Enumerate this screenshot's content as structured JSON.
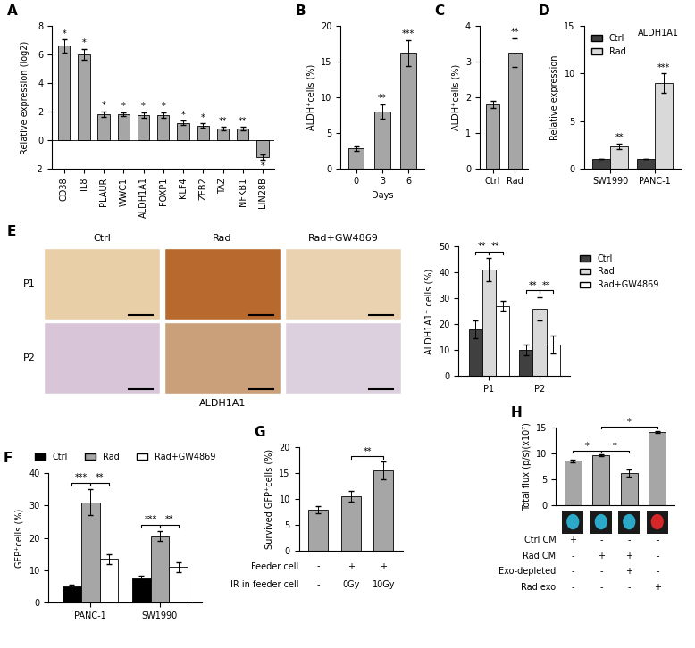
{
  "chart_data": [
    {
      "type": "bar",
      "title": "A",
      "y_label": "Relative expression (log2)",
      "categories": [
        "CD38",
        "IL8",
        "PLAUR",
        "WWC1",
        "ALDH1A1",
        "FOXP1",
        "KLF4",
        "ZEB2",
        "TAZ",
        "NFKB1",
        "LIN28B"
      ],
      "values": [
        6.6,
        6.0,
        1.8,
        1.8,
        1.75,
        1.75,
        1.2,
        1.0,
        0.8,
        0.8,
        -1.2
      ],
      "errors": [
        0.45,
        0.4,
        0.2,
        0.15,
        0.2,
        0.2,
        0.15,
        0.15,
        0.1,
        0.1,
        0.2
      ],
      "annotations": [
        "*",
        "*",
        "*",
        "*",
        "*",
        "*",
        "*",
        "*",
        "**",
        "**",
        "*"
      ],
      "color": "#a6a6a6",
      "ylim": [
        -2,
        8
      ],
      "yticks": [
        -2,
        0,
        2,
        4,
        6,
        8
      ]
    },
    {
      "type": "bar",
      "title": "B",
      "y_label": "ALDH⁺cells (%)",
      "x_label": "Days",
      "categories": [
        "0",
        "3",
        "6"
      ],
      "values": [
        2.8,
        8.0,
        16.2
      ],
      "errors": [
        0.3,
        1.0,
        1.8
      ],
      "annotations": [
        null,
        "**",
        "***"
      ],
      "color": "#a6a6a6",
      "ylim": [
        0,
        20
      ],
      "yticks": [
        0,
        5,
        10,
        15,
        20
      ]
    },
    {
      "type": "bar",
      "title": "C",
      "y_label": "ALDH⁺cells (%)",
      "categories": [
        "Ctrl",
        "Rad"
      ],
      "values": [
        1.8,
        3.25
      ],
      "errors": [
        0.1,
        0.4
      ],
      "annotations": [
        null,
        "**"
      ],
      "color": "#a6a6a6",
      "ylim": [
        0,
        4
      ],
      "yticks": [
        0,
        1,
        2,
        3,
        4
      ]
    },
    {
      "type": "grouped_bar",
      "title": "D",
      "subtitle": "ALDH1A1",
      "y_label": "Relative expression",
      "categories": [
        "SW1990",
        "PANC-1"
      ],
      "series": [
        {
          "name": "Ctrl",
          "color": "#404040",
          "values": [
            1,
            1
          ],
          "errors": [
            0,
            0
          ],
          "annotations": [
            null,
            null
          ]
        },
        {
          "name": "Rad",
          "color": "#d9d9d9",
          "values": [
            2.3,
            9.0
          ],
          "errors": [
            0.3,
            1.0
          ],
          "annotations": [
            "**",
            "***"
          ]
        }
      ],
      "legend": "upper left",
      "ylim": [
        0,
        15
      ],
      "yticks": [
        0,
        5,
        10,
        15
      ]
    },
    {
      "type": "image_grid",
      "title": "E",
      "rows": [
        "P1",
        "P2"
      ],
      "columns": [
        "Ctrl",
        "Rad",
        "Rad+GW4869"
      ],
      "caption": "ALDH1A1"
    },
    {
      "type": "grouped_bar",
      "y_label": "ALDH1A1⁺ cells (%)",
      "categories": [
        "P1",
        "P2"
      ],
      "series": [
        {
          "name": "Ctrl",
          "color": "#404040",
          "values": [
            18,
            10
          ],
          "errors": [
            3.5,
            2
          ]
        },
        {
          "name": "Rad",
          "color": "#d9d9d9",
          "values": [
            41,
            26
          ],
          "errors": [
            4.5,
            4.5
          ]
        },
        {
          "name": "Rad+GW4869",
          "color": "#ffffff",
          "values": [
            27,
            12
          ],
          "errors": [
            2,
            3.5
          ]
        }
      ],
      "comparisons": [
        {
          "category": "P1",
          "from": "Ctrl",
          "to": "Rad",
          "text": "**"
        },
        {
          "category": "P1",
          "from": "Rad",
          "to": "Rad+GW4869",
          "text": "**"
        },
        {
          "category": "P2",
          "from": "Ctrl",
          "to": "Rad",
          "text": "**"
        },
        {
          "category": "P2",
          "from": "Rad",
          "to": "Rad+GW4869",
          "text": "**"
        }
      ],
      "legend": "upper left",
      "ylim": [
        0,
        50
      ],
      "yticks": [
        0,
        10,
        20,
        30,
        40,
        50
      ]
    },
    {
      "type": "grouped_bar",
      "title": "F",
      "y_label": "GFP⁺cells (%)",
      "categories": [
        "PANC-1",
        "SW1990"
      ],
      "series": [
        {
          "name": "Ctrl",
          "color": "#000000",
          "values": [
            5,
            7.5
          ],
          "errors": [
            0.5,
            0.8
          ]
        },
        {
          "name": "Rad",
          "color": "#a6a6a6",
          "values": [
            31,
            20.5
          ],
          "errors": [
            4,
            1.5
          ]
        },
        {
          "name": "Rad+GW4869",
          "color": "#ffffff",
          "values": [
            13.5,
            11
          ],
          "errors": [
            1.5,
            1.5
          ]
        }
      ],
      "comparisons": [
        {
          "category": "PANC-1",
          "from": "Ctrl",
          "to": "Rad",
          "text": "***"
        },
        {
          "category": "PANC-1",
          "from": "Rad",
          "to": "Rad+GW4869",
          "text": "**"
        },
        {
          "category": "SW1990",
          "from": "Ctrl",
          "to": "Rad",
          "text": "***"
        },
        {
          "category": "SW1990",
          "from": "Rad",
          "to": "Rad+GW4869",
          "text": "**"
        }
      ],
      "legend": "upper center",
      "ylim": [
        0,
        40
      ],
      "yticks": [
        0,
        10,
        20,
        30,
        40
      ]
    },
    {
      "type": "bar",
      "title": "G",
      "y_label": "Survived GFP⁺cells (%)",
      "categories": [
        null,
        null,
        null
      ],
      "values": [
        8,
        10.5,
        15.5
      ],
      "errors": [
        0.7,
        1.0,
        1.7
      ],
      "comparisons": [
        {
          "from": 1,
          "to": 2,
          "text": "**"
        }
      ],
      "conditions": [
        {
          "label": "Feeder cell",
          "values": [
            "-",
            "+",
            "+"
          ]
        },
        {
          "label": "IR in feeder cell",
          "values": [
            "-",
            "0Gy",
            "10Gy"
          ]
        }
      ],
      "color": "#a6a6a6",
      "tick_labels": "y",
      "ylim": [
        0,
        20
      ],
      "yticks": [
        0,
        5,
        10,
        15,
        20
      ]
    },
    {
      "type": "bar",
      "title": "H",
      "y_label": "Total flux (p/s)(x10⁷)",
      "categories": [
        null,
        null,
        null,
        null
      ],
      "values": [
        8.6,
        9.7,
        6.3,
        14.2
      ],
      "errors": [
        0.3,
        0.1,
        0.7,
        0.2
      ],
      "comparisons": [
        {
          "from": 0,
          "to": 1,
          "text": "*"
        },
        {
          "from": 1,
          "to": 2,
          "text": "*"
        },
        {
          "from": 1,
          "to": 3,
          "text": "*"
        }
      ],
      "conditions": [
        {
          "label": "Ctrl CM",
          "values": [
            "+",
            "-",
            "-",
            "-"
          ]
        },
        {
          "label": "Rad CM",
          "values": [
            "-",
            "+",
            "+",
            "-"
          ]
        },
        {
          "label": "Exo-depleted",
          "values": [
            "-",
            "-",
            "+",
            "-"
          ]
        },
        {
          "label": "Rad exo",
          "values": [
            "-",
            "-",
            "-",
            "+"
          ]
        }
      ],
      "color": "#a6a6a6",
      "tick_labels": "y",
      "ylim": [
        0,
        15
      ],
      "yticks": [
        0,
        5,
        10,
        15
      ]
    }
  ]
}
